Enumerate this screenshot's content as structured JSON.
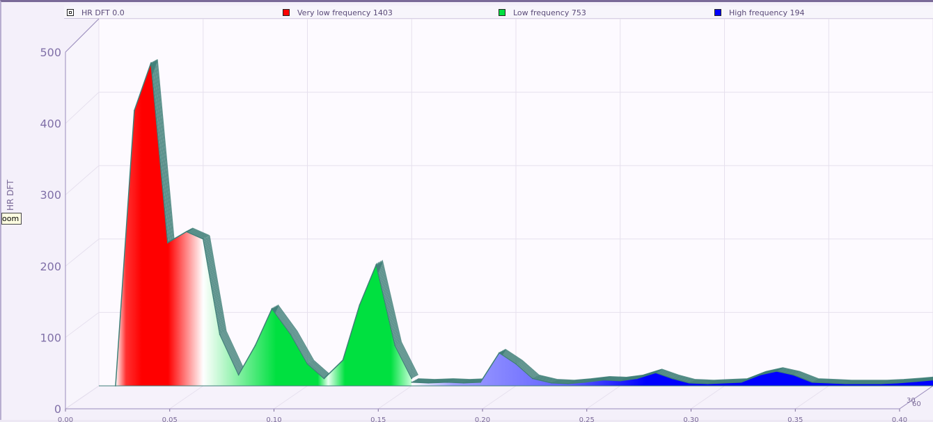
{
  "legend": [
    {
      "label": "HR DFT  0.0",
      "color": "#ffffff"
    },
    {
      "label": "Very low frequency 1403",
      "color": "#ff0000"
    },
    {
      "label": "Low frequency  753",
      "color": "#00e040"
    },
    {
      "label": "High frequency  194",
      "color": "#0000ff"
    }
  ],
  "tooltip": "oom",
  "chart_data": {
    "type": "area",
    "ylabel": "HR DFT",
    "ylim": [
      0,
      500
    ],
    "xlim": [
      0,
      0.4
    ],
    "yticks": [
      "0",
      "100",
      "200",
      "300",
      "400",
      "500"
    ],
    "xticks": [
      "0.00",
      "0.05",
      "0.10",
      "0.15",
      "0.20",
      "0.25",
      "0.30",
      "0.35",
      "0.40"
    ],
    "depth_ticks": [
      "30",
      "60"
    ],
    "grid": true,
    "legend_position": "top",
    "series": [
      {
        "name": "Very low frequency",
        "color": "#ff0000",
        "x": [
          0.008,
          0.017,
          0.025,
          0.033,
          0.042,
          0.05
        ],
        "y": [
          0,
          375,
          440,
          195,
          210,
          200
        ]
      },
      {
        "name": "Low frequency",
        "color": "#00e040",
        "x": [
          0.05,
          0.058,
          0.067,
          0.075,
          0.083,
          0.092,
          0.1,
          0.108,
          0.117,
          0.125,
          0.133,
          0.142,
          0.15
        ],
        "y": [
          200,
          70,
          15,
          55,
          105,
          70,
          30,
          10,
          35,
          110,
          165,
          55,
          10
        ]
      },
      {
        "name": "High frequency",
        "color": "#0000ff",
        "x": [
          0.15,
          0.158,
          0.167,
          0.175,
          0.183,
          0.192,
          0.2,
          0.208,
          0.217,
          0.225,
          0.233,
          0.242,
          0.25,
          0.258,
          0.267,
          0.275,
          0.283,
          0.292,
          0.3,
          0.308,
          0.317,
          0.325,
          0.333,
          0.342,
          0.35,
          0.358,
          0.367,
          0.375,
          0.383,
          0.392,
          0.4
        ],
        "y": [
          5,
          4,
          5,
          4,
          5,
          45,
          30,
          10,
          4,
          3,
          5,
          8,
          7,
          10,
          18,
          10,
          4,
          3,
          4,
          5,
          15,
          20,
          15,
          5,
          4,
          3,
          3,
          3,
          4,
          6,
          8
        ]
      }
    ]
  }
}
